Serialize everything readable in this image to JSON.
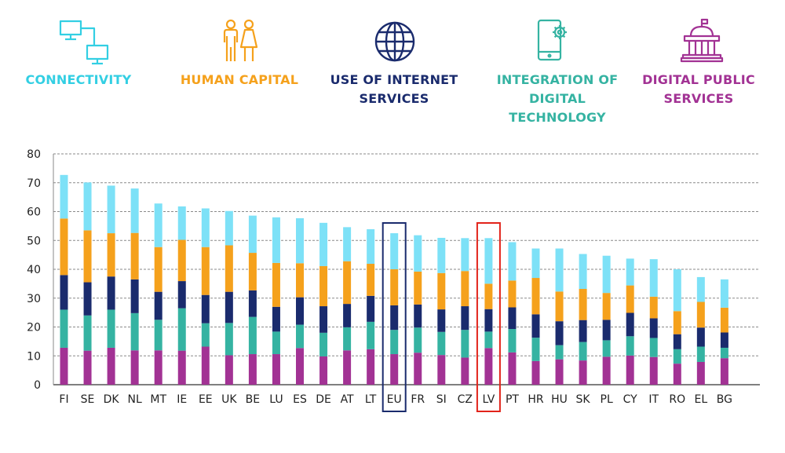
{
  "legend": [
    {
      "label": "CONNECTIVITY",
      "color": "#33cfe3",
      "icon": "network-computers-icon"
    },
    {
      "label": "HUMAN CAPITAL",
      "color": "#f5a11c",
      "icon": "two-people-icon"
    },
    {
      "label": "USE OF INTERNET SERVICES",
      "color": "#1a2b6d",
      "icon": "globe-icon"
    },
    {
      "label": "INTEGRATION OF DIGITAL TECHNOLOGY",
      "color": "#35b3a2",
      "icon": "smartphone-gear-icon"
    },
    {
      "label": "DIGITAL PUBLIC SERVICES",
      "color": "#a23294",
      "icon": "government-building-icon"
    }
  ],
  "chart_data": {
    "type": "bar",
    "stacked": true,
    "categories": [
      "FI",
      "SE",
      "DK",
      "NL",
      "MT",
      "IE",
      "EE",
      "UK",
      "BE",
      "LU",
      "ES",
      "DE",
      "AT",
      "LT",
      "EU",
      "FR",
      "SI",
      "CZ",
      "LV",
      "PT",
      "HR",
      "HU",
      "SK",
      "PL",
      "CY",
      "IT",
      "RO",
      "EL",
      "BG"
    ],
    "series": [
      {
        "name": "DIGITAL PUBLIC SERVICES",
        "color": "#a23294",
        "values": [
          12.8,
          11.8,
          12.8,
          11.9,
          11.9,
          11.8,
          13.2,
          10.2,
          10.6,
          10.6,
          12.7,
          9.8,
          11.9,
          12.3,
          10.6,
          11.1,
          10.3,
          9.4,
          12.7,
          11.2,
          8.2,
          8.8,
          8.4,
          9.7,
          10.1,
          9.6,
          7.3,
          7.9,
          9.2
        ]
      },
      {
        "name": "INTEGRATION OF DIGITAL TECHNOLOGY",
        "color": "#35b3a2",
        "values": [
          13.2,
          12.2,
          13.2,
          12.9,
          10.6,
          14.7,
          8.1,
          11.2,
          12.9,
          7.8,
          8.1,
          8.2,
          8.0,
          9.5,
          8.4,
          8.7,
          8.0,
          9.6,
          5.7,
          8.1,
          8.1,
          4.9,
          6.4,
          5.7,
          6.7,
          6.6,
          5.0,
          5.3,
          3.6
        ]
      },
      {
        "name": "USE OF INTERNET SERVICES",
        "color": "#1a2b6d",
        "values": [
          12.0,
          11.5,
          11.5,
          11.7,
          9.7,
          9.4,
          9.8,
          10.8,
          9.2,
          8.6,
          9.5,
          9.2,
          8.1,
          9.0,
          8.5,
          8.0,
          7.8,
          8.2,
          7.8,
          7.5,
          8.1,
          8.3,
          7.6,
          7.1,
          8.1,
          6.8,
          5.2,
          6.6,
          5.3
        ]
      },
      {
        "name": "HUMAN CAPITAL",
        "color": "#f5a11c",
        "values": [
          19.6,
          18.0,
          15.0,
          16.1,
          15.5,
          14.3,
          16.6,
          16.1,
          13.0,
          15.2,
          11.8,
          13.9,
          14.8,
          11.1,
          12.5,
          11.4,
          12.6,
          12.2,
          8.8,
          9.3,
          12.6,
          10.3,
          10.8,
          9.3,
          9.5,
          7.5,
          8.0,
          8.9,
          8.6
        ]
      },
      {
        "name": "CONNECTIVITY",
        "color": "#7de1f7",
        "values": [
          15.1,
          16.6,
          16.5,
          15.4,
          15.1,
          11.6,
          13.4,
          11.9,
          12.9,
          15.8,
          15.6,
          15.0,
          11.8,
          12.0,
          12.5,
          12.6,
          12.2,
          11.4,
          15.8,
          13.3,
          10.2,
          14.9,
          12.1,
          12.9,
          9.3,
          13.0,
          14.5,
          8.6,
          9.8
        ]
      }
    ],
    "yticks": [
      0,
      10,
      20,
      30,
      40,
      50,
      60,
      70,
      80
    ],
    "ylim": [
      0,
      80
    ],
    "highlights": [
      {
        "category": "EU",
        "color": "#1a2b6d"
      },
      {
        "category": "LV",
        "color": "#e2231a"
      }
    ],
    "grid": true,
    "title": "",
    "xlabel": "",
    "ylabel": ""
  }
}
